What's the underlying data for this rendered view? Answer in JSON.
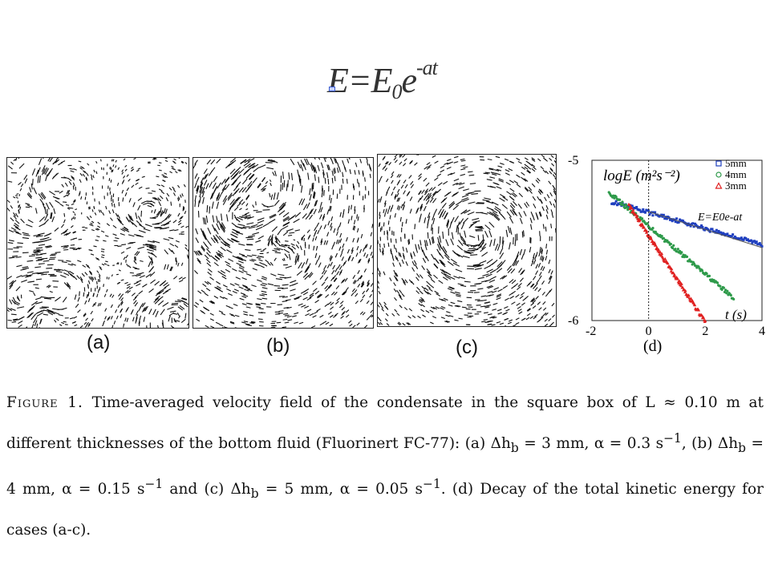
{
  "formula": {
    "lhs": "E",
    "eq": "=E",
    "sub": "0",
    "base": "e",
    "sup": "-at"
  },
  "panels": [
    {
      "id": "a",
      "label": "(a)",
      "cells": 14
    },
    {
      "id": "b",
      "label": "(b)",
      "cells": 14
    },
    {
      "id": "c",
      "label": "(c)",
      "cells": 14
    }
  ],
  "chart_data": {
    "type": "scatter",
    "title": "",
    "xlabel": "t (s)",
    "ylabel": "logE (m²s⁻²)",
    "xlim": [
      -2,
      4
    ],
    "ylim": [
      -6,
      -5
    ],
    "x_ticks": [
      "-2",
      "0",
      "2",
      "4"
    ],
    "y_ticks": [
      "-5",
      "-6"
    ],
    "panel_label": "(d)",
    "fit_label": "E=E0e-at",
    "legend_position": "top-right",
    "series": [
      {
        "name": "5mm",
        "marker": "square",
        "color": "#1f3fbf",
        "x_range": [
          -1.3,
          4.0
        ],
        "y_start": -5.26,
        "slope": -0.05
      },
      {
        "name": "4mm",
        "marker": "circle",
        "color": "#2e9a4a",
        "x_range": [
          -1.4,
          3.0
        ],
        "y_start": -5.2,
        "slope": -0.15
      },
      {
        "name": "3mm",
        "marker": "triangle",
        "color": "#e02020",
        "x_range": [
          -0.7,
          2.0
        ],
        "y_start": -5.28,
        "slope": -0.27
      }
    ],
    "vline_x": 0
  },
  "caption": {
    "lead": "Figure 1.",
    "text": " Time-averaged velocity field of the condensate in the square box of L ≈ 0.10 m at different thicknesses of the bottom fluid (Fluorinert FC-77): (a) Δh",
    "sub_b": "b",
    "text2": " = 3 mm, α = 0.3 s",
    "sup_1": "−1",
    "text3": ", (b) Δh",
    "sub_b2": "b",
    "text4": " = 4 mm, α = 0.15 s",
    "sup_2": "−1",
    "text5": " and (c) Δh",
    "sub_b3": "b",
    "text6": " = 5 mm, α = 0.05 s",
    "sup_3": "−1",
    "text7": ". (d) Decay of the total kinetic energy for cases (a-c)."
  }
}
